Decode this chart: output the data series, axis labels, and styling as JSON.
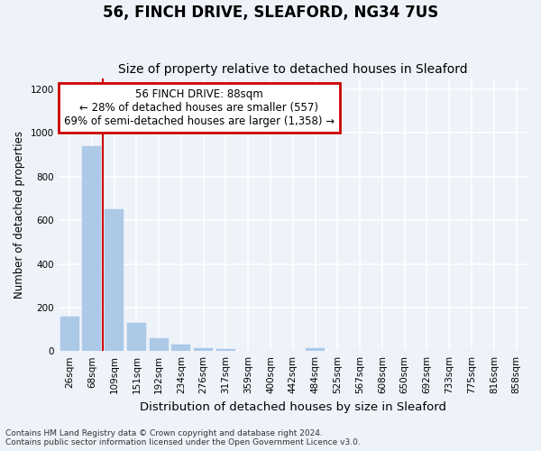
{
  "title": "56, FINCH DRIVE, SLEAFORD, NG34 7US",
  "subtitle": "Size of property relative to detached houses in Sleaford",
  "xlabel": "Distribution of detached houses by size in Sleaford",
  "ylabel": "Number of detached properties",
  "footnote1": "Contains HM Land Registry data © Crown copyright and database right 2024.",
  "footnote2": "Contains public sector information licensed under the Open Government Licence v3.0.",
  "categories": [
    "26sqm",
    "68sqm",
    "109sqm",
    "151sqm",
    "192sqm",
    "234sqm",
    "276sqm",
    "317sqm",
    "359sqm",
    "400sqm",
    "442sqm",
    "484sqm",
    "525sqm",
    "567sqm",
    "608sqm",
    "650sqm",
    "692sqm",
    "733sqm",
    "775sqm",
    "816sqm",
    "858sqm"
  ],
  "values": [
    160,
    940,
    650,
    130,
    60,
    28,
    12,
    8,
    0,
    0,
    0,
    15,
    0,
    0,
    0,
    0,
    0,
    0,
    0,
    0,
    0
  ],
  "bar_color": "#adc9e8",
  "bar_edgecolor": "#adc9e8",
  "background_color": "#eef2f9",
  "plot_bg_color": "#eef2f9",
  "grid_color": "#ffffff",
  "ylim": [
    0,
    1250
  ],
  "yticks": [
    0,
    200,
    400,
    600,
    800,
    1000,
    1200
  ],
  "red_line_x": 1.51,
  "annotation_line1": "56 FINCH DRIVE: 88sqm",
  "annotation_line2": "← 28% of detached houses are smaller (557)",
  "annotation_line3": "69% of semi-detached houses are larger (1,358) →",
  "annotation_box_color": "#ffffff",
  "annotation_border_color": "#cc0000",
  "title_fontsize": 12,
  "subtitle_fontsize": 10,
  "xlabel_fontsize": 9.5,
  "ylabel_fontsize": 8.5,
  "tick_fontsize": 7.5,
  "annotation_fontsize": 8.5,
  "footnote_fontsize": 6.5
}
